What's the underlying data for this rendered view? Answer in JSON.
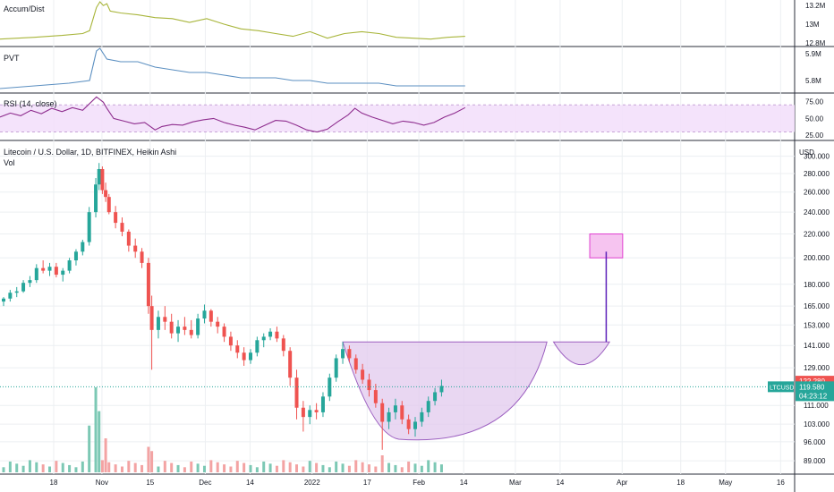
{
  "chart_data": {
    "type": "candlestick",
    "title": "Litecoin / U.S. Dollar, 1D, BITFINEX, Heikin Ashi",
    "volume_label": "Vol",
    "currency": "USD",
    "y_scale": "log",
    "ylim": [
      85,
      305
    ],
    "yticks": [
      "300.000",
      "280.000",
      "260.000",
      "240.000",
      "220.000",
      "200.000",
      "180.000",
      "165.000",
      "153.000",
      "141.000",
      "129.000",
      "111.000",
      "103.000",
      "96.000",
      "89.000"
    ],
    "ytick_values": [
      300,
      280,
      260,
      240,
      220,
      200,
      180,
      165,
      153,
      141,
      129,
      111,
      103,
      96,
      89
    ],
    "xticks": [
      {
        "label": "18",
        "day": 0
      },
      {
        "label": "Nov",
        "day": 14
      },
      {
        "label": "15",
        "day": 28
      },
      {
        "label": "Dec",
        "day": 44
      },
      {
        "label": "14",
        "day": 57
      },
      {
        "label": "2022",
        "day": 75
      },
      {
        "label": "17",
        "day": 91
      },
      {
        "label": "Feb",
        "day": 106
      },
      {
        "label": "14",
        "day": 119
      },
      {
        "label": "Mar",
        "day": 134
      },
      {
        "label": "14",
        "day": 147
      },
      {
        "label": "Apr",
        "day": 165
      },
      {
        "label": "18",
        "day": 182
      },
      {
        "label": "May",
        "day": 195
      },
      {
        "label": "16",
        "day": 211
      }
    ],
    "symbol_badge": "LTCUSD",
    "last_price": "119.580",
    "countdown": "04:23:12",
    "high_badge": "122.280",
    "candles_sampled": [
      [
        0,
        168,
        171,
        165,
        170
      ],
      [
        2,
        170,
        176,
        168,
        174
      ],
      [
        4,
        174,
        178,
        171,
        175
      ],
      [
        6,
        175,
        183,
        174,
        181
      ],
      [
        8,
        181,
        186,
        178,
        183
      ],
      [
        10,
        183,
        195,
        181,
        192
      ],
      [
        12,
        192,
        198,
        188,
        190
      ],
      [
        14,
        190,
        196,
        186,
        193
      ],
      [
        16,
        193,
        196,
        185,
        187
      ],
      [
        18,
        187,
        192,
        182,
        190
      ],
      [
        20,
        190,
        200,
        188,
        198
      ],
      [
        22,
        198,
        207,
        194,
        205
      ],
      [
        24,
        205,
        215,
        202,
        213
      ],
      [
        26,
        213,
        245,
        210,
        240
      ],
      [
        28,
        240,
        275,
        235,
        268
      ],
      [
        29,
        268,
        292,
        262,
        285
      ],
      [
        30,
        285,
        288,
        258,
        262
      ],
      [
        31,
        262,
        270,
        250,
        255
      ],
      [
        32,
        255,
        258,
        238,
        240
      ],
      [
        34,
        240,
        246,
        225,
        230
      ],
      [
        36,
        230,
        235,
        218,
        222
      ],
      [
        38,
        222,
        224,
        205,
        210
      ],
      [
        40,
        210,
        216,
        200,
        205
      ],
      [
        42,
        205,
        208,
        192,
        196
      ],
      [
        44,
        196,
        200,
        160,
        165
      ],
      [
        45,
        165,
        172,
        128,
        150
      ],
      [
        47,
        150,
        162,
        145,
        158
      ],
      [
        49,
        158,
        165,
        150,
        155
      ],
      [
        51,
        155,
        160,
        145,
        148
      ],
      [
        53,
        148,
        156,
        143,
        152
      ],
      [
        55,
        152,
        158,
        147,
        150
      ],
      [
        57,
        150,
        156,
        145,
        147
      ],
      [
        59,
        147,
        160,
        145,
        157
      ],
      [
        61,
        157,
        166,
        154,
        162
      ],
      [
        63,
        162,
        163,
        152,
        155
      ],
      [
        65,
        155,
        158,
        148,
        152
      ],
      [
        67,
        152,
        154,
        143,
        146
      ],
      [
        69,
        146,
        149,
        138,
        141
      ],
      [
        71,
        141,
        144,
        134,
        137
      ],
      [
        73,
        137,
        140,
        130,
        133
      ],
      [
        75,
        133,
        139,
        131,
        137
      ],
      [
        77,
        137,
        146,
        135,
        144
      ],
      [
        79,
        144,
        148,
        140,
        146
      ],
      [
        81,
        146,
        151,
        144,
        149
      ],
      [
        83,
        149,
        152,
        143,
        145
      ],
      [
        85,
        145,
        147,
        135,
        138
      ],
      [
        87,
        138,
        140,
        120,
        124
      ],
      [
        89,
        124,
        128,
        105,
        110
      ],
      [
        91,
        110,
        113,
        100,
        106
      ],
      [
        93,
        106,
        111,
        103,
        109
      ],
      [
        95,
        109,
        112,
        105,
        108
      ],
      [
        97,
        108,
        117,
        106,
        115
      ],
      [
        99,
        115,
        126,
        113,
        124
      ],
      [
        101,
        124,
        136,
        122,
        134
      ],
      [
        103,
        134,
        143,
        131,
        139
      ],
      [
        105,
        139,
        141,
        132,
        134
      ],
      [
        107,
        134,
        136,
        126,
        128
      ],
      [
        109,
        128,
        131,
        121,
        123
      ],
      [
        111,
        123,
        126,
        115,
        118
      ],
      [
        113,
        118,
        121,
        110,
        112
      ],
      [
        115,
        112,
        114,
        93,
        104
      ],
      [
        117,
        104,
        110,
        101,
        108
      ],
      [
        119,
        108,
        114,
        105,
        111
      ],
      [
        121,
        111,
        113,
        103,
        105
      ],
      [
        123,
        105,
        107,
        99,
        101
      ],
      [
        125,
        101,
        106,
        98,
        104
      ],
      [
        127,
        104,
        110,
        102,
        108
      ],
      [
        129,
        108,
        115,
        106,
        113
      ],
      [
        131,
        113,
        119,
        111,
        117
      ],
      [
        133,
        117,
        123,
        115,
        120
      ]
    ],
    "volume_spikes": [
      {
        "day": 26,
        "value": 0.55
      },
      {
        "day": 28,
        "value": 1.0
      },
      {
        "day": 29,
        "value": 0.72
      },
      {
        "day": 31,
        "value": 0.4
      },
      {
        "day": 33,
        "value": 0.35
      },
      {
        "day": 44,
        "value": 0.3
      },
      {
        "day": 45,
        "value": 0.25
      },
      {
        "day": 115,
        "value": 0.2
      }
    ],
    "pattern": {
      "cup_rim_price": 143,
      "cup_bottom_price": 97,
      "cup_start_day": 103,
      "cup_end_day": 165,
      "handle_start_day": 167,
      "handle_end_day": 184,
      "handle_bottom_price": 129,
      "target_zone": [
        200,
        220
      ],
      "target_start_day": 178,
      "target_end_day": 188,
      "projection_from": 143,
      "projection_to": 205
    },
    "indicators": [
      {
        "name": "Accum/Dist",
        "color": "#a8b53a",
        "yticks": [
          "13.2M",
          "13M",
          "12.8M"
        ],
        "ytick_values": [
          13.2,
          13.0,
          12.8
        ],
        "range": [
          12.78,
          13.24
        ],
        "points": [
          [
            0,
            12.84
          ],
          [
            10,
            12.86
          ],
          [
            18,
            12.88
          ],
          [
            24,
            12.9
          ],
          [
            26,
            12.93
          ],
          [
            28,
            13.18
          ],
          [
            29,
            13.24
          ],
          [
            30,
            13.2
          ],
          [
            31,
            13.22
          ],
          [
            32,
            13.14
          ],
          [
            35,
            13.12
          ],
          [
            40,
            13.1
          ],
          [
            45,
            13.07
          ],
          [
            50,
            13.06
          ],
          [
            55,
            13.02
          ],
          [
            60,
            13.06
          ],
          [
            65,
            13.0
          ],
          [
            70,
            12.95
          ],
          [
            75,
            12.93
          ],
          [
            80,
            12.9
          ],
          [
            85,
            12.87
          ],
          [
            90,
            12.92
          ],
          [
            95,
            12.85
          ],
          [
            100,
            12.9
          ],
          [
            105,
            12.92
          ],
          [
            110,
            12.9
          ],
          [
            115,
            12.86
          ],
          [
            120,
            12.85
          ],
          [
            125,
            12.84
          ],
          [
            130,
            12.86
          ],
          [
            135,
            12.87
          ]
        ]
      },
      {
        "name": "PVT",
        "color": "#5b8fc1",
        "yticks": [
          "5.9M",
          "5.8M"
        ],
        "ytick_values": [
          5.9,
          5.8
        ],
        "range": [
          5.76,
          5.92
        ],
        "points": [
          [
            0,
            5.77
          ],
          [
            10,
            5.78
          ],
          [
            20,
            5.79
          ],
          [
            26,
            5.8
          ],
          [
            28,
            5.91
          ],
          [
            29,
            5.92
          ],
          [
            31,
            5.88
          ],
          [
            35,
            5.87
          ],
          [
            40,
            5.87
          ],
          [
            45,
            5.85
          ],
          [
            50,
            5.84
          ],
          [
            55,
            5.83
          ],
          [
            60,
            5.83
          ],
          [
            65,
            5.82
          ],
          [
            70,
            5.81
          ],
          [
            75,
            5.81
          ],
          [
            80,
            5.81
          ],
          [
            85,
            5.8
          ],
          [
            90,
            5.8
          ],
          [
            95,
            5.79
          ],
          [
            100,
            5.79
          ],
          [
            105,
            5.79
          ],
          [
            110,
            5.79
          ],
          [
            115,
            5.78
          ],
          [
            120,
            5.78
          ],
          [
            125,
            5.78
          ],
          [
            130,
            5.78
          ],
          [
            135,
            5.78
          ]
        ]
      },
      {
        "name": "RSI (14, close)",
        "color": "#8e2d8e",
        "yticks": [
          "75.00",
          "50.00",
          "25.00"
        ],
        "ytick_values": [
          75,
          50,
          25
        ],
        "range": [
          20,
          85
        ],
        "band": [
          30,
          70
        ],
        "points": [
          [
            0,
            52
          ],
          [
            3,
            58
          ],
          [
            6,
            54
          ],
          [
            9,
            62
          ],
          [
            12,
            57
          ],
          [
            15,
            65
          ],
          [
            18,
            60
          ],
          [
            21,
            66
          ],
          [
            24,
            62
          ],
          [
            26,
            72
          ],
          [
            28,
            82
          ],
          [
            29,
            78
          ],
          [
            30,
            74
          ],
          [
            31,
            65
          ],
          [
            33,
            50
          ],
          [
            36,
            46
          ],
          [
            39,
            42
          ],
          [
            42,
            44
          ],
          [
            45,
            33
          ],
          [
            47,
            38
          ],
          [
            50,
            41
          ],
          [
            53,
            40
          ],
          [
            56,
            45
          ],
          [
            59,
            48
          ],
          [
            62,
            50
          ],
          [
            65,
            44
          ],
          [
            68,
            40
          ],
          [
            71,
            37
          ],
          [
            74,
            33
          ],
          [
            77,
            40
          ],
          [
            80,
            47
          ],
          [
            83,
            46
          ],
          [
            86,
            40
          ],
          [
            89,
            33
          ],
          [
            92,
            30
          ],
          [
            95,
            34
          ],
          [
            98,
            45
          ],
          [
            101,
            55
          ],
          [
            103,
            65
          ],
          [
            105,
            58
          ],
          [
            108,
            52
          ],
          [
            111,
            47
          ],
          [
            114,
            42
          ],
          [
            117,
            46
          ],
          [
            120,
            44
          ],
          [
            123,
            40
          ],
          [
            126,
            44
          ],
          [
            129,
            52
          ],
          [
            132,
            58
          ],
          [
            135,
            66
          ]
        ]
      }
    ]
  }
}
